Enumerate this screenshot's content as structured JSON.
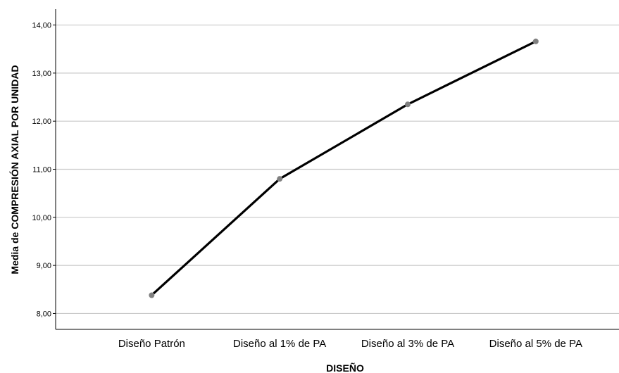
{
  "chart_data": {
    "type": "line",
    "xlabel": "DISEÑO",
    "ylabel": "Media de COMPRESIÓN AXIAL POR UNIDAD",
    "categories": [
      "Diseño Patrón",
      "Diseño al 1% de PA",
      "Diseño al 3% de PA",
      "Diseño al 5% de PA"
    ],
    "series": [
      {
        "values": [
          8.38,
          10.8,
          12.35,
          13.66
        ]
      }
    ],
    "ylim": [
      7.67,
      14.33
    ],
    "yticks": [
      8,
      9,
      10,
      11,
      12,
      13,
      14
    ],
    "ytick_labels": [
      "8,00",
      "9,00",
      "10,00",
      "11,00",
      "12,00",
      "13,00",
      "14,00"
    ],
    "grid": true,
    "legend": "none",
    "colors": {
      "line": "#000000",
      "marker": "#808080",
      "grid": "#c8c8c8",
      "axis": "#000000"
    }
  }
}
